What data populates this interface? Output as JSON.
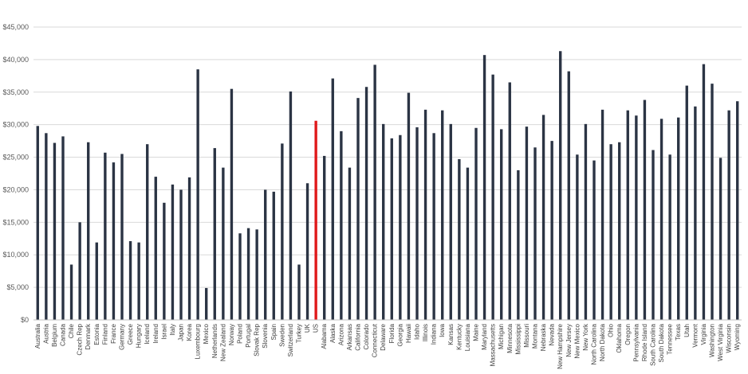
{
  "colors": {
    "bar": "#2b3444",
    "highlight": "#e0191b",
    "grid": "#d9d9d9",
    "text": "#595959",
    "background": "#ffffff"
  },
  "chart_data": {
    "type": "bar",
    "title": "",
    "xlabel": "",
    "ylabel": "",
    "ylim": [
      0,
      45000
    ],
    "yticks": [
      0,
      5000,
      10000,
      15000,
      20000,
      25000,
      30000,
      35000,
      40000,
      45000
    ],
    "ytick_labels": [
      "$0",
      "$5,000",
      "$10,000",
      "$15,000",
      "$20,000",
      "$25,000",
      "$30,000",
      "$35,000",
      "$40,000",
      "$45,000"
    ],
    "grid": true,
    "legend": "none",
    "highlight_category": "US",
    "categories": [
      "Australia",
      "Austria",
      "Belgium",
      "Canada",
      "Chile",
      "Czech Rep",
      "Denmark",
      "Estonia",
      "Finland",
      "France",
      "Germany",
      "Greece",
      "Hungary",
      "Iceland",
      "Ireland",
      "Israel",
      "Italy",
      "Japan",
      "Korea",
      "Luxembourg",
      "Mexico",
      "Netherlands",
      "New Zealand",
      "Norway",
      "Poland",
      "Portugal",
      "Slovak Rep",
      "Slovenia",
      "Spain",
      "Sweden",
      "Switzerland",
      "Turkey",
      "UK",
      "US",
      "Alabama",
      "Alaska",
      "Arizona",
      "Arkansas",
      "California",
      "Colorado",
      "Connecticut",
      "Delaware",
      "Florida",
      "Georgia",
      "Hawaii",
      "Idaho",
      "Illinois",
      "Indiana",
      "Iowa",
      "Kansas",
      "Kentucky",
      "Louisiana",
      "Maine",
      "Maryland",
      "Massachusetts",
      "Michigan",
      "Minnesota",
      "Mississippi",
      "Missouri",
      "Montana",
      "Nebraska",
      "Nevada",
      "New Hampshire",
      "New Jersey",
      "New Mexico",
      "New York",
      "North Carolina",
      "North Dakota",
      "Ohio",
      "Oklahoma",
      "Oregon",
      "Pennsylvania",
      "Rhode Island",
      "South Carolina",
      "South Dakota",
      "Tennessee",
      "Texas",
      "Utah",
      "Vermont",
      "Virginia",
      "Washington",
      "West Virginia",
      "Wisconsin",
      "Wyoming"
    ],
    "values": [
      29800,
      28700,
      27200,
      28200,
      8500,
      15000,
      27300,
      11900,
      25700,
      24200,
      25500,
      12100,
      11900,
      27000,
      22000,
      18000,
      20800,
      20000,
      21900,
      38500,
      4900,
      26400,
      23400,
      35500,
      13300,
      14100,
      13900,
      20000,
      19700,
      27100,
      35100,
      8500,
      21000,
      30600,
      25200,
      37100,
      29000,
      23400,
      34100,
      35800,
      39200,
      30100,
      27900,
      28400,
      34900,
      29600,
      32300,
      28700,
      32200,
      30100,
      24700,
      23400,
      29500,
      40700,
      37700,
      29300,
      36500,
      23000,
      29700,
      26500,
      31500,
      27500,
      41300,
      38200,
      25400,
      30100,
      24500,
      32300,
      27000,
      27300,
      32200,
      31400,
      33800,
      26100,
      30900,
      25400,
      31100,
      36000,
      32800,
      39300,
      36300,
      24900,
      32200,
      33600
    ]
  }
}
